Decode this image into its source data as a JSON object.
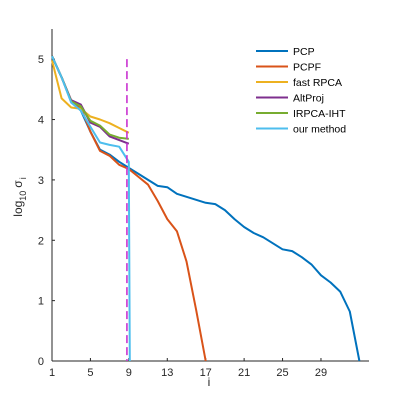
{
  "chart_data": {
    "type": "line",
    "xlabel": "i",
    "ylabel_base": "log",
    "ylabel_sub": "10",
    "ylabel_sigma": "σ",
    "ylabel_sigma_sub": "i",
    "xlim": [
      1,
      34
    ],
    "ylim": [
      0,
      5.5
    ],
    "xticks": [
      1,
      5,
      9,
      13,
      17,
      21,
      25,
      29
    ],
    "yticks": [
      0,
      1,
      2,
      3,
      4,
      5
    ],
    "grid": false,
    "legend_position": "top-right",
    "vline": {
      "x": 8.8,
      "color": "#C933D0",
      "style": "dashed"
    },
    "series": [
      {
        "name": "PCP",
        "color": "#0072BD",
        "x": [
          1,
          2,
          3,
          4,
          5,
          6,
          7,
          8,
          9,
          10,
          11,
          12,
          13,
          14,
          15,
          16,
          17,
          18,
          19,
          20,
          21,
          22,
          23,
          24,
          25,
          26,
          27,
          28,
          29,
          30,
          31,
          32,
          33
        ],
        "y": [
          5.05,
          4.7,
          4.3,
          4.15,
          3.8,
          3.5,
          3.42,
          3.3,
          3.2,
          3.1,
          3.0,
          2.9,
          2.88,
          2.77,
          2.72,
          2.67,
          2.62,
          2.6,
          2.5,
          2.35,
          2.22,
          2.12,
          2.05,
          1.95,
          1.85,
          1.82,
          1.72,
          1.6,
          1.42,
          1.3,
          1.15,
          0.82,
          0.0
        ]
      },
      {
        "name": "PCPF",
        "color": "#D95319",
        "x": [
          1,
          2,
          3,
          4,
          5,
          6,
          7,
          8,
          9,
          10,
          11,
          12,
          13,
          14,
          15,
          16,
          17
        ],
        "y": [
          5.05,
          4.7,
          4.3,
          4.2,
          3.8,
          3.48,
          3.4,
          3.25,
          3.18,
          3.05,
          2.92,
          2.65,
          2.35,
          2.15,
          1.65,
          0.85,
          0.0
        ]
      },
      {
        "name": "fast RPCA",
        "color": "#EDB120",
        "x": [
          1,
          2,
          3,
          4,
          5,
          6,
          7,
          8,
          9
        ],
        "y": [
          4.98,
          4.35,
          4.2,
          4.18,
          4.05,
          4.0,
          3.94,
          3.86,
          3.78
        ]
      },
      {
        "name": "AltProj",
        "color": "#7E2F8E",
        "x": [
          1,
          2,
          3,
          4,
          5,
          6,
          7,
          8,
          9
        ],
        "y": [
          5.05,
          4.7,
          4.32,
          4.25,
          3.95,
          3.88,
          3.72,
          3.66,
          3.6
        ]
      },
      {
        "name": "IRPCA-IHT",
        "color": "#77AC30",
        "x": [
          1,
          2,
          3,
          4,
          5,
          6,
          7,
          8,
          9
        ],
        "y": [
          5.05,
          4.7,
          4.3,
          4.22,
          3.98,
          3.9,
          3.75,
          3.7,
          3.68
        ]
      },
      {
        "name": "our method",
        "color": "#4DBEEE",
        "x": [
          1,
          2,
          3,
          4,
          5,
          6,
          7,
          8,
          9,
          9.1
        ],
        "y": [
          5.05,
          4.7,
          4.28,
          4.15,
          3.88,
          3.62,
          3.58,
          3.55,
          3.3,
          0.0
        ]
      }
    ]
  }
}
